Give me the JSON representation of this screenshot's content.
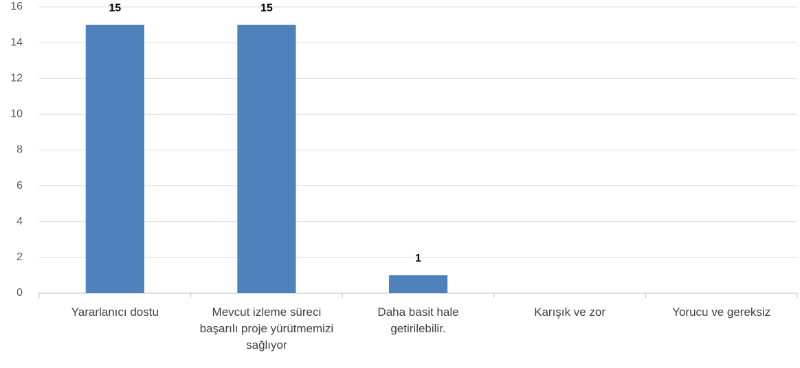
{
  "chart_data": {
    "type": "bar",
    "categories": [
      "Yararlanıcı dostu",
      "Mevcut izleme süreci başarılı proje yürütmemizi sağlıyor",
      "Daha basit hale getirilebilir.",
      "Karışık ve zor",
      "Yorucu ve gereksiz"
    ],
    "values": [
      15,
      15,
      1,
      0,
      0
    ],
    "color": "#4f81bd",
    "ylim": [
      0,
      16
    ],
    "yticks": [
      0,
      2,
      4,
      6,
      8,
      10,
      12,
      14,
      16
    ],
    "grid": true
  }
}
